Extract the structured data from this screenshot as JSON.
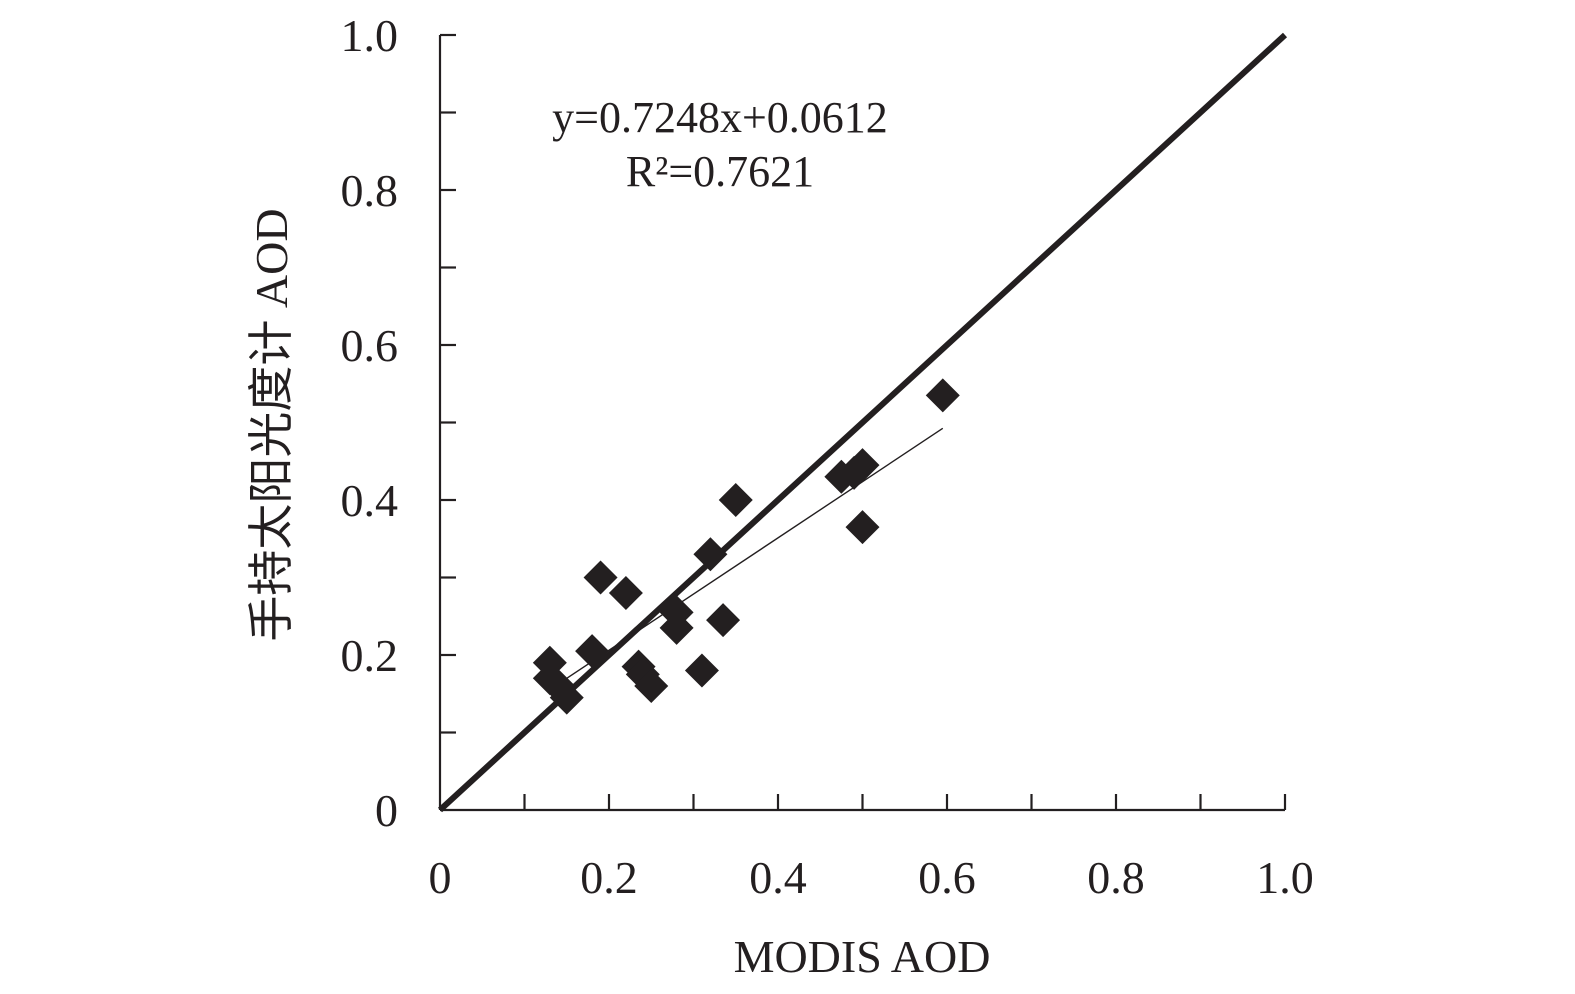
{
  "chart_data": {
    "type": "scatter",
    "xlabel": "MODIS AOD",
    "ylabel": "手持太阳光度计 AOD",
    "xlim": [
      0,
      1.0
    ],
    "ylim": [
      0,
      1.0
    ],
    "x_ticks": [
      "0",
      "0.2",
      "0.4",
      "0.6",
      "0.8",
      "1.0"
    ],
    "y_ticks": [
      "0",
      "0.2",
      "0.4",
      "0.6",
      "0.8",
      "1.0"
    ],
    "x_tick_step": 0.1,
    "y_tick_step": 0.1,
    "grid": false,
    "equation": {
      "line1": "y=0.7248x+0.0612",
      "line2": "R²=0.7621"
    },
    "reference_line": {
      "from": [
        0,
        0
      ],
      "to": [
        1.0,
        1.0
      ]
    },
    "fit_line": {
      "slope": 0.7248,
      "intercept": 0.0612,
      "x_range": [
        0.13,
        0.595
      ]
    },
    "points": [
      {
        "x": 0.13,
        "y": 0.19
      },
      {
        "x": 0.13,
        "y": 0.17
      },
      {
        "x": 0.14,
        "y": 0.16
      },
      {
        "x": 0.15,
        "y": 0.145
      },
      {
        "x": 0.18,
        "y": 0.205
      },
      {
        "x": 0.19,
        "y": 0.3
      },
      {
        "x": 0.22,
        "y": 0.28
      },
      {
        "x": 0.235,
        "y": 0.185
      },
      {
        "x": 0.24,
        "y": 0.175
      },
      {
        "x": 0.25,
        "y": 0.16
      },
      {
        "x": 0.28,
        "y": 0.255
      },
      {
        "x": 0.28,
        "y": 0.235
      },
      {
        "x": 0.31,
        "y": 0.18
      },
      {
        "x": 0.32,
        "y": 0.33
      },
      {
        "x": 0.335,
        "y": 0.245
      },
      {
        "x": 0.35,
        "y": 0.4
      },
      {
        "x": 0.475,
        "y": 0.43
      },
      {
        "x": 0.49,
        "y": 0.435
      },
      {
        "x": 0.5,
        "y": 0.445
      },
      {
        "x": 0.5,
        "y": 0.365
      },
      {
        "x": 0.595,
        "y": 0.535
      }
    ]
  }
}
